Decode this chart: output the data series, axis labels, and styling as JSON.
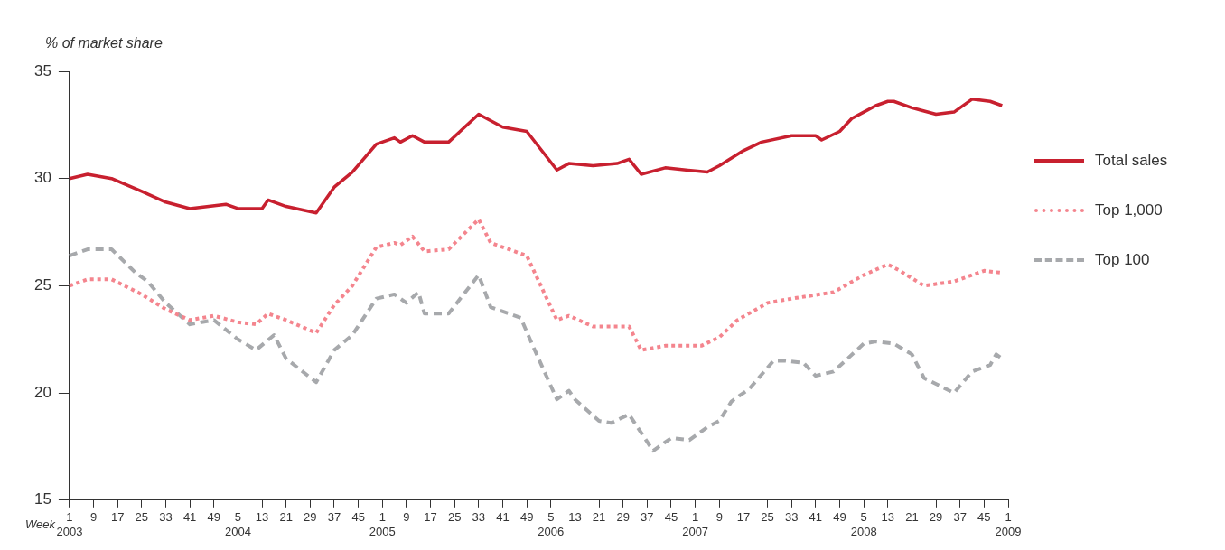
{
  "chart_data": {
    "type": "line",
    "ylabel": "% of market share",
    "xlabel": "Week",
    "categories": [
      "1\n2003",
      null,
      null,
      null,
      "9",
      null,
      null,
      null,
      "17",
      null,
      null,
      null,
      "25",
      null,
      null,
      null,
      "33",
      null,
      null,
      null,
      "41",
      null,
      null,
      null,
      "49",
      null,
      null,
      null,
      "5\n2004",
      null,
      null,
      null,
      "13",
      null,
      null,
      null,
      "21",
      null,
      null,
      null,
      "29",
      null,
      null,
      null,
      "37",
      null,
      null,
      null,
      "45",
      null,
      null,
      null,
      "1\n2005",
      null,
      null,
      null,
      "9",
      null,
      null,
      null,
      "17",
      null,
      null,
      null,
      "25",
      null,
      null,
      null,
      "33",
      null,
      null,
      null,
      "41",
      null,
      null,
      null,
      "49",
      null,
      null,
      null,
      "5\n2006",
      null,
      null,
      null,
      "13",
      null,
      null,
      null,
      "21",
      null,
      null,
      null,
      "29",
      null,
      null,
      null,
      "37",
      null,
      null,
      null,
      "45",
      null,
      null,
      null,
      "1\n2007",
      null,
      null,
      null,
      "9",
      null,
      null,
      null,
      "17",
      null,
      null,
      null,
      "25",
      null,
      null,
      null,
      "33",
      null,
      null,
      null,
      "41",
      null,
      null,
      null,
      "49",
      null,
      null,
      null,
      "5\n2008",
      null,
      null,
      null,
      "13",
      null,
      null,
      null,
      "21",
      null,
      null,
      null,
      "29",
      null,
      null,
      null,
      "37",
      null,
      null,
      null,
      "45",
      null,
      null,
      null,
      "1\n2009"
    ],
    "ylim": [
      15,
      35
    ],
    "yticks": [
      15,
      20,
      25,
      30,
      35
    ],
    "grid": false,
    "legend": "right",
    "marker": "none",
    "series": [
      {
        "name": "Total sales",
        "color": "#c8202f",
        "line_style": "solid",
        "values": [
          30.0,
          null,
          null,
          30.2,
          null,
          null,
          null,
          30.0,
          null,
          null,
          null,
          null,
          29.4,
          null,
          null,
          null,
          28.9,
          null,
          null,
          null,
          28.6,
          null,
          null,
          null,
          null,
          null,
          28.8,
          null,
          28.6,
          null,
          null,
          null,
          28.6,
          29.0,
          null,
          null,
          28.7,
          null,
          null,
          null,
          null,
          28.4,
          null,
          null,
          29.6,
          null,
          null,
          30.3,
          null,
          null,
          null,
          31.6,
          null,
          null,
          31.9,
          31.7,
          null,
          32.0,
          null,
          31.7,
          null,
          null,
          null,
          31.7,
          null,
          null,
          null,
          null,
          33.0,
          null,
          null,
          null,
          32.4,
          null,
          null,
          null,
          32.2,
          null,
          null,
          null,
          null,
          30.4,
          null,
          30.7,
          null,
          null,
          null,
          30.6,
          null,
          null,
          null,
          30.7,
          null,
          30.9,
          null,
          30.2,
          null,
          null,
          null,
          30.5,
          null,
          null,
          null,
          null,
          null,
          null,
          30.3,
          null,
          30.6,
          null,
          null,
          null,
          31.3,
          null,
          null,
          31.7,
          null,
          null,
          null,
          null,
          32.0,
          null,
          null,
          null,
          32.0,
          31.8,
          null,
          null,
          32.2,
          null,
          32.8,
          null,
          33.1,
          null,
          33.4,
          null,
          33.6,
          33.6,
          null,
          null,
          33.3,
          null,
          null,
          null,
          33.0,
          null,
          null,
          33.1,
          null,
          null,
          33.7,
          null,
          null,
          33.6,
          null,
          33.4,
          null
        ]
      },
      {
        "name": "Top 1,000",
        "color": "#f4858e",
        "line_style": "dotted",
        "values": [
          25.0,
          null,
          null,
          25.3,
          null,
          null,
          null,
          25.3,
          null,
          null,
          null,
          null,
          24.6,
          null,
          null,
          null,
          23.9,
          null,
          null,
          null,
          23.4,
          null,
          null,
          null,
          23.6,
          null,
          null,
          null,
          23.3,
          null,
          null,
          23.2,
          null,
          23.7,
          null,
          null,
          23.4,
          null,
          null,
          null,
          null,
          22.8,
          null,
          null,
          24.1,
          null,
          null,
          25.0,
          null,
          null,
          null,
          26.8,
          null,
          null,
          27.0,
          26.9,
          null,
          27.3,
          null,
          26.6,
          null,
          null,
          null,
          26.7,
          null,
          null,
          null,
          null,
          28.1,
          null,
          27.0,
          null,
          null,
          null,
          null,
          null,
          26.4,
          null,
          null,
          null,
          null,
          23.4,
          null,
          23.6,
          null,
          null,
          null,
          23.1,
          null,
          null,
          null,
          23.1,
          null,
          23.1,
          null,
          22.0,
          null,
          null,
          null,
          22.2,
          null,
          null,
          null,
          null,
          null,
          22.2,
          null,
          null,
          22.6,
          null,
          null,
          23.4,
          null,
          null,
          null,
          null,
          24.2,
          null,
          null,
          null,
          24.4,
          null,
          null,
          null,
          null,
          null,
          null,
          24.7,
          null,
          null,
          null,
          null,
          25.5,
          null,
          null,
          null,
          26.0,
          null,
          25.7,
          null,
          null,
          null,
          25.0,
          null,
          null,
          null,
          null,
          25.2,
          null,
          null,
          null,
          null,
          25.7,
          null,
          null,
          25.6,
          null
        ]
      },
      {
        "name": "Top 100",
        "color": "#a7a9ac",
        "line_style": "dashed",
        "values": [
          26.4,
          null,
          null,
          26.7,
          null,
          null,
          null,
          26.7,
          null,
          null,
          null,
          25.6,
          null,
          25.2,
          null,
          null,
          24.2,
          null,
          null,
          null,
          23.2,
          null,
          null,
          null,
          23.4,
          null,
          null,
          null,
          22.5,
          null,
          null,
          22.0,
          null,
          null,
          22.7,
          null,
          21.6,
          null,
          null,
          null,
          null,
          20.5,
          null,
          null,
          22.0,
          null,
          null,
          22.7,
          null,
          null,
          null,
          24.4,
          null,
          null,
          24.6,
          null,
          24.2,
          null,
          24.7,
          23.7,
          null,
          null,
          null,
          23.7,
          null,
          null,
          null,
          null,
          25.5,
          null,
          24.0,
          null,
          null,
          null,
          null,
          23.5,
          null,
          22.2,
          null,
          null,
          null,
          19.7,
          null,
          20.1,
          19.7,
          null,
          null,
          null,
          18.7,
          null,
          18.6,
          null,
          null,
          19.0,
          null,
          null,
          null,
          17.3,
          null,
          null,
          17.9,
          null,
          null,
          17.8,
          null,
          null,
          18.4,
          null,
          18.7,
          null,
          19.6,
          null,
          null,
          20.2,
          null,
          null,
          null,
          21.5,
          null,
          21.5,
          null,
          null,
          21.4,
          null,
          20.8,
          null,
          null,
          21.0,
          null,
          null,
          null,
          null,
          22.3,
          null,
          22.4,
          null,
          null,
          22.3,
          null,
          null,
          21.8,
          null,
          20.7,
          null,
          null,
          null,
          null,
          20.0,
          null,
          null,
          21.0,
          null,
          null,
          21.3,
          21.8,
          21.6,
          null
        ]
      }
    ]
  }
}
